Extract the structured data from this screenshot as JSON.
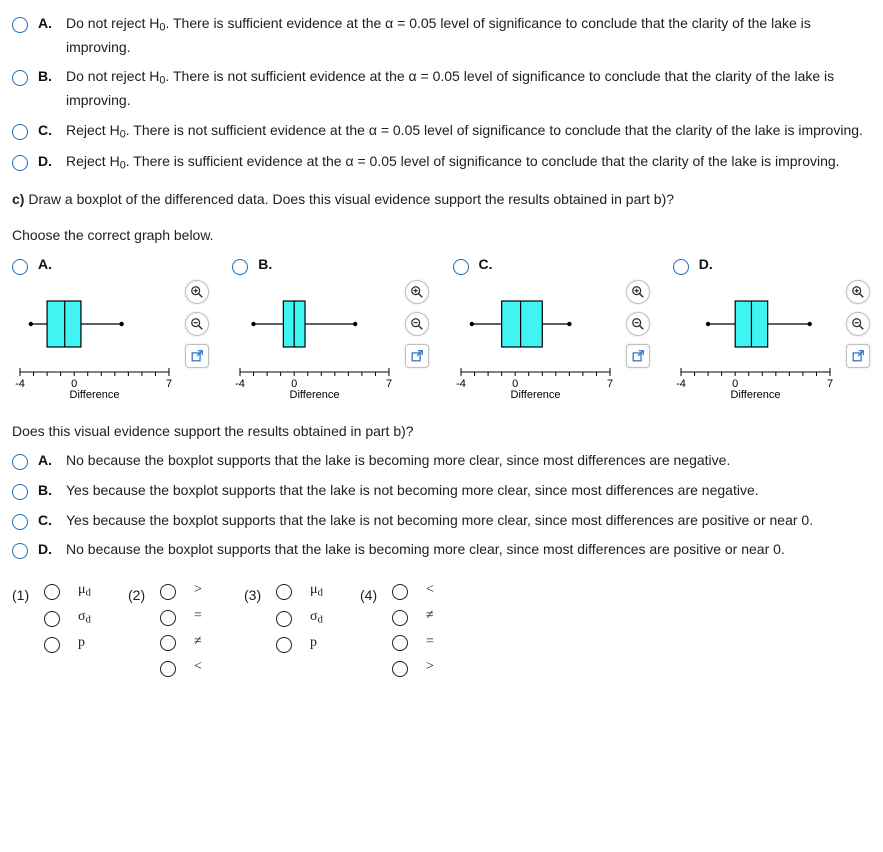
{
  "q1": {
    "options": [
      {
        "letter": "A.",
        "text_pre": "Do not reject H",
        "text_post": ". There is sufficient evidence at the α = 0.05 level of significance to conclude that the clarity of the lake is improving."
      },
      {
        "letter": "B.",
        "text_pre": "Do not reject H",
        "text_post": ". There is not sufficient evidence at the α = 0.05 level of significance to conclude that the clarity of the lake is improving."
      },
      {
        "letter": "C.",
        "text_pre": "Reject H",
        "text_post": ". There is not sufficient evidence at the α = 0.05 level of significance to conclude that the clarity of the lake is improving."
      },
      {
        "letter": "D.",
        "text_pre": "Reject H",
        "text_post": ". There is sufficient evidence at the α = 0.05 level of significance to conclude that the clarity of the lake is improving."
      }
    ],
    "sub": "0"
  },
  "qC": {
    "prompt_label": "c)",
    "prompt_rest": "Draw a boxplot of the differenced data. Does this visual evidence support the results obtained in part b)?",
    "choose": "Choose the correct graph below."
  },
  "graphs": {
    "axis_min_label": "-4",
    "axis_zero_label": "0",
    "axis_max_label": "7",
    "xlabel": "Difference",
    "fill_color": "#41f4f4",
    "border_color": "#000000",
    "options": [
      {
        "letter": "A.",
        "whisker_lo": -3.2,
        "q1": -2.0,
        "med": -0.7,
        "q3": 0.5,
        "whisker_hi": 3.5
      },
      {
        "letter": "B.",
        "whisker_lo": -3.0,
        "q1": -0.8,
        "med": 0.0,
        "q3": 0.8,
        "whisker_hi": 4.5
      },
      {
        "letter": "C.",
        "whisker_lo": -3.2,
        "q1": -1.0,
        "med": 0.4,
        "q3": 2.0,
        "whisker_hi": 4.0
      },
      {
        "letter": "D.",
        "whisker_lo": -2.0,
        "q1": 0.0,
        "med": 1.2,
        "q3": 2.4,
        "whisker_hi": 5.5
      }
    ]
  },
  "q3": {
    "prompt": "Does this visual evidence support the results obtained in part b)?",
    "options": [
      {
        "letter": "A.",
        "text": "No because the boxplot supports that the lake is becoming more clear, since most differences are negative."
      },
      {
        "letter": "B.",
        "text": "Yes because the boxplot supports that the lake is not becoming more clear, since most differences are negative."
      },
      {
        "letter": "C.",
        "text": "Yes because the boxplot supports that the lake is not becoming more clear, since most differences are positive or near 0."
      },
      {
        "letter": "D.",
        "text": "No because the boxplot supports that the lake is becoming more clear, since most differences are positive or near 0."
      }
    ]
  },
  "symGroups": [
    {
      "num": "(1)",
      "items": [
        {
          "html": "μ<span class='sub'>d</span>"
        },
        {
          "html": "σ<span class='sub'>d</span>"
        },
        {
          "html": "p"
        }
      ]
    },
    {
      "num": "(2)",
      "items": [
        {
          "html": "&gt;"
        },
        {
          "html": "="
        },
        {
          "html": "≠"
        },
        {
          "html": "&lt;"
        }
      ]
    },
    {
      "num": "(3)",
      "items": [
        {
          "html": "μ<span class='sub'>d</span>"
        },
        {
          "html": "σ<span class='sub'>d</span>"
        },
        {
          "html": "p"
        }
      ]
    },
    {
      "num": "(4)",
      "items": [
        {
          "html": "&lt;"
        },
        {
          "html": "≠"
        },
        {
          "html": "="
        },
        {
          "html": "&gt;"
        }
      ]
    }
  ]
}
